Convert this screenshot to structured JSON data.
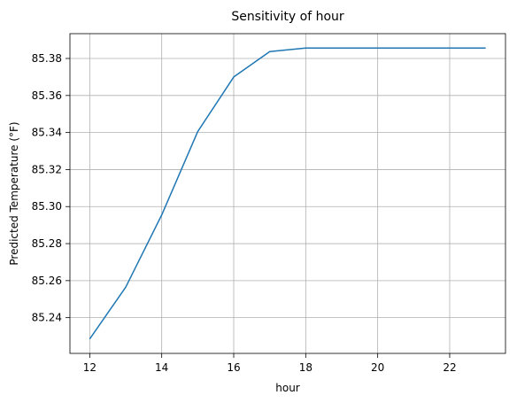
{
  "chart_data": {
    "type": "line",
    "title": "Sensitivity of hour",
    "xlabel": "hour",
    "ylabel": "Predicted Temperature (°F)",
    "x": [
      12,
      13,
      14,
      15,
      16,
      17,
      18,
      19,
      20,
      21,
      22,
      23
    ],
    "series": [
      {
        "values": [
          85.2285,
          85.2565,
          85.2955,
          85.3405,
          85.37,
          85.3837,
          85.3856,
          85.3856,
          85.3856,
          85.3856,
          85.3856,
          85.3856
        ],
        "color": "#1f77b4"
      }
    ],
    "xlim": [
      11.45,
      23.55
    ],
    "ylim": [
      85.2207,
      85.3934
    ],
    "xticks": [
      12,
      14,
      16,
      18,
      20,
      22
    ],
    "xtick_labels": [
      "12",
      "14",
      "16",
      "18",
      "20",
      "22"
    ],
    "yticks": [
      85.24,
      85.26,
      85.28,
      85.3,
      85.32,
      85.34,
      85.36,
      85.38
    ],
    "ytick_labels": [
      "85.24",
      "85.26",
      "85.28",
      "85.30",
      "85.32",
      "85.34",
      "85.36",
      "85.38"
    ],
    "grid": true,
    "legend": "none"
  }
}
